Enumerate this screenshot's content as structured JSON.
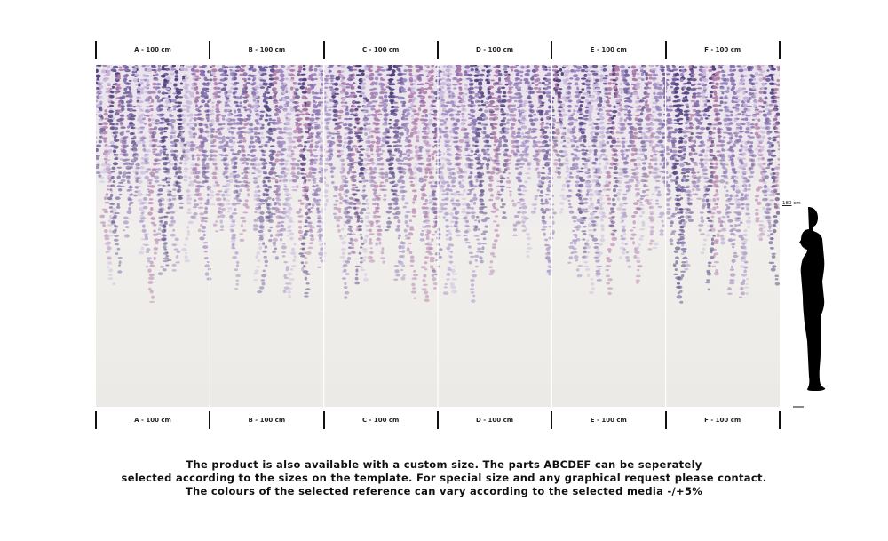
{
  "panels": [
    {
      "label": "A - 100 cm"
    },
    {
      "label": "B - 100 cm"
    },
    {
      "label": "C - 100 cm"
    },
    {
      "label": "D - 100 cm"
    },
    {
      "label": "E - 100 cm"
    },
    {
      "label": "F - 100 cm"
    }
  ],
  "person": {
    "height_value": "180",
    "height_unit": "cm"
  },
  "notes": [
    "The product is also available with a custom size. The parts ABCDEF can be seperately",
    "selected according to the sizes on the template. For special size and any graphical request please contact.",
    "The colours of the selected reference can vary according to the selected media -/+5%"
  ],
  "colors": {
    "purple_dark": "#4a3a7a",
    "purple_mid": "#8a70b0",
    "pink": "#b07aa8",
    "wall": "#efedea"
  }
}
